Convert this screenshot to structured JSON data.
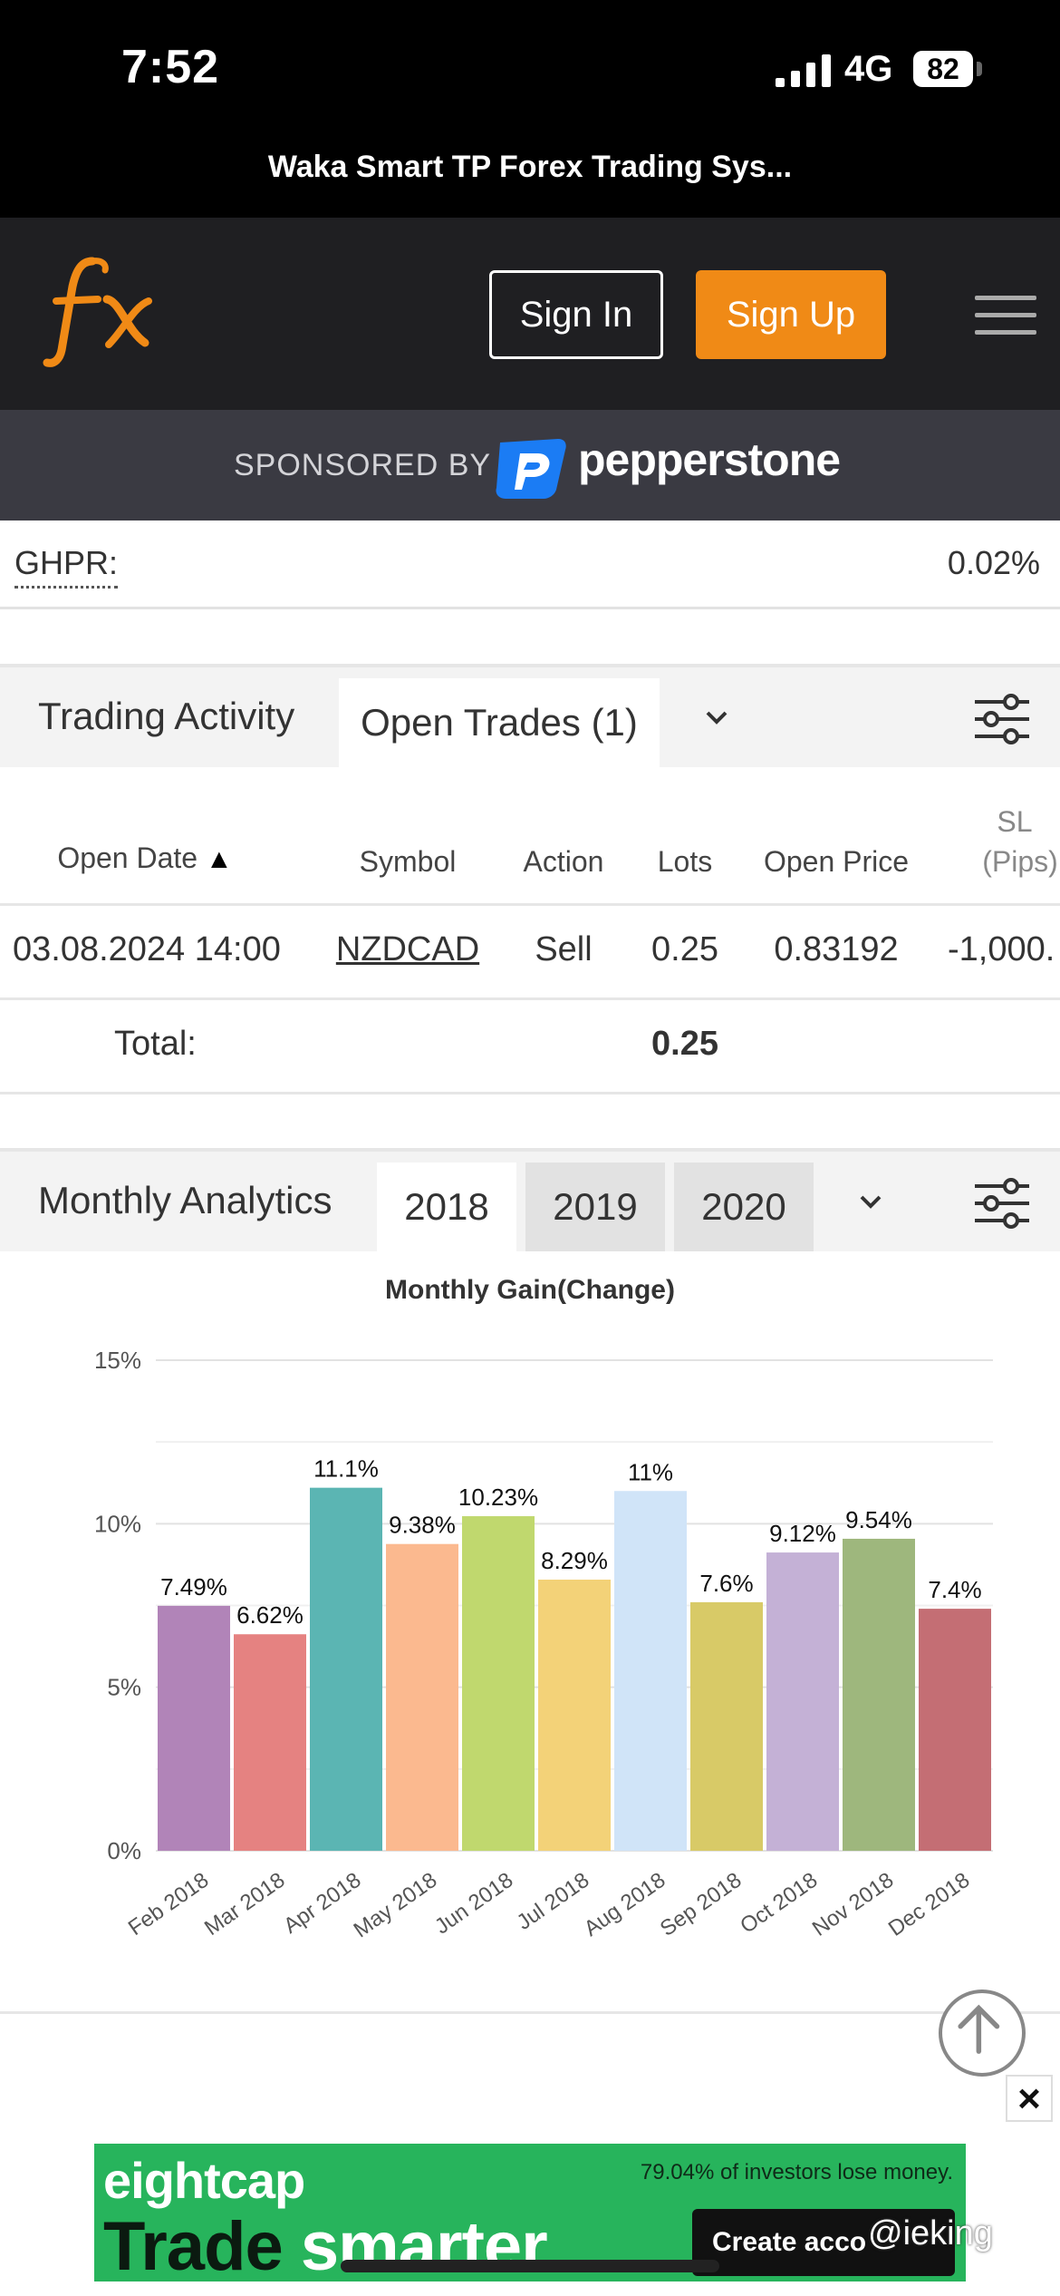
{
  "status": {
    "time": "7:52",
    "network": "4G",
    "battery": "82"
  },
  "page_title": "Waka Smart TP Forex Trading Sys...",
  "header": {
    "logo_text": "fx",
    "signin": "Sign In",
    "signup": "Sign Up"
  },
  "sponsor": {
    "label": "SPONSORED BY",
    "brand": "pepperstone"
  },
  "ghpr": {
    "label": "GHPR:",
    "value": "0.02%"
  },
  "activity": {
    "title": "Trading Activity",
    "tab_open": "Open Trades (1)",
    "columns": [
      "Open Date",
      "Symbol",
      "Action",
      "Lots",
      "Open Price",
      "SL",
      "(Pips)"
    ],
    "row": {
      "date": "03.08.2024 14:00",
      "symbol": "NZDCAD",
      "action": "Sell",
      "lots": "0.25",
      "price": "0.83192",
      "sl": "-1,000."
    },
    "total_label": "Total:",
    "total_lots": "0.25"
  },
  "analytics": {
    "title": "Monthly Analytics",
    "years": [
      "2018",
      "2019",
      "2020"
    ]
  },
  "chart_data": {
    "type": "bar",
    "title": "Monthly Gain(Change)",
    "categories": [
      "Feb 2018",
      "Mar 2018",
      "Apr 2018",
      "May 2018",
      "Jun 2018",
      "Jul 2018",
      "Aug 2018",
      "Sep 2018",
      "Oct 2018",
      "Nov 2018",
      "Dec 2018"
    ],
    "values": [
      7.49,
      6.62,
      11.1,
      9.38,
      10.23,
      8.29,
      11,
      7.6,
      9.12,
      9.54,
      7.4
    ],
    "labels": [
      "7.49%",
      "6.62%",
      "11.1%",
      "9.38%",
      "10.23%",
      "8.29%",
      "11%",
      "7.6%",
      "9.12%",
      "9.54%",
      "7.4%"
    ],
    "colors": [
      "#b184b8",
      "#e58281",
      "#5bb5b3",
      "#fbb98f",
      "#c0d86e",
      "#f3d278",
      "#d0e4f8",
      "#d8ca67",
      "#c4b1d6",
      "#9eb77d",
      "#c46e74"
    ],
    "yticks": [
      "15%",
      "10%",
      "5%",
      "0%"
    ],
    "ylim": [
      0,
      15
    ],
    "grid": true
  },
  "ad": {
    "brand": "eightcap",
    "risk": "79.04% of investors lose money.",
    "slogan_a": "Trade",
    "slogan_b": "smarter",
    "cta": "Create acco",
    "watermark": "@ieking"
  }
}
